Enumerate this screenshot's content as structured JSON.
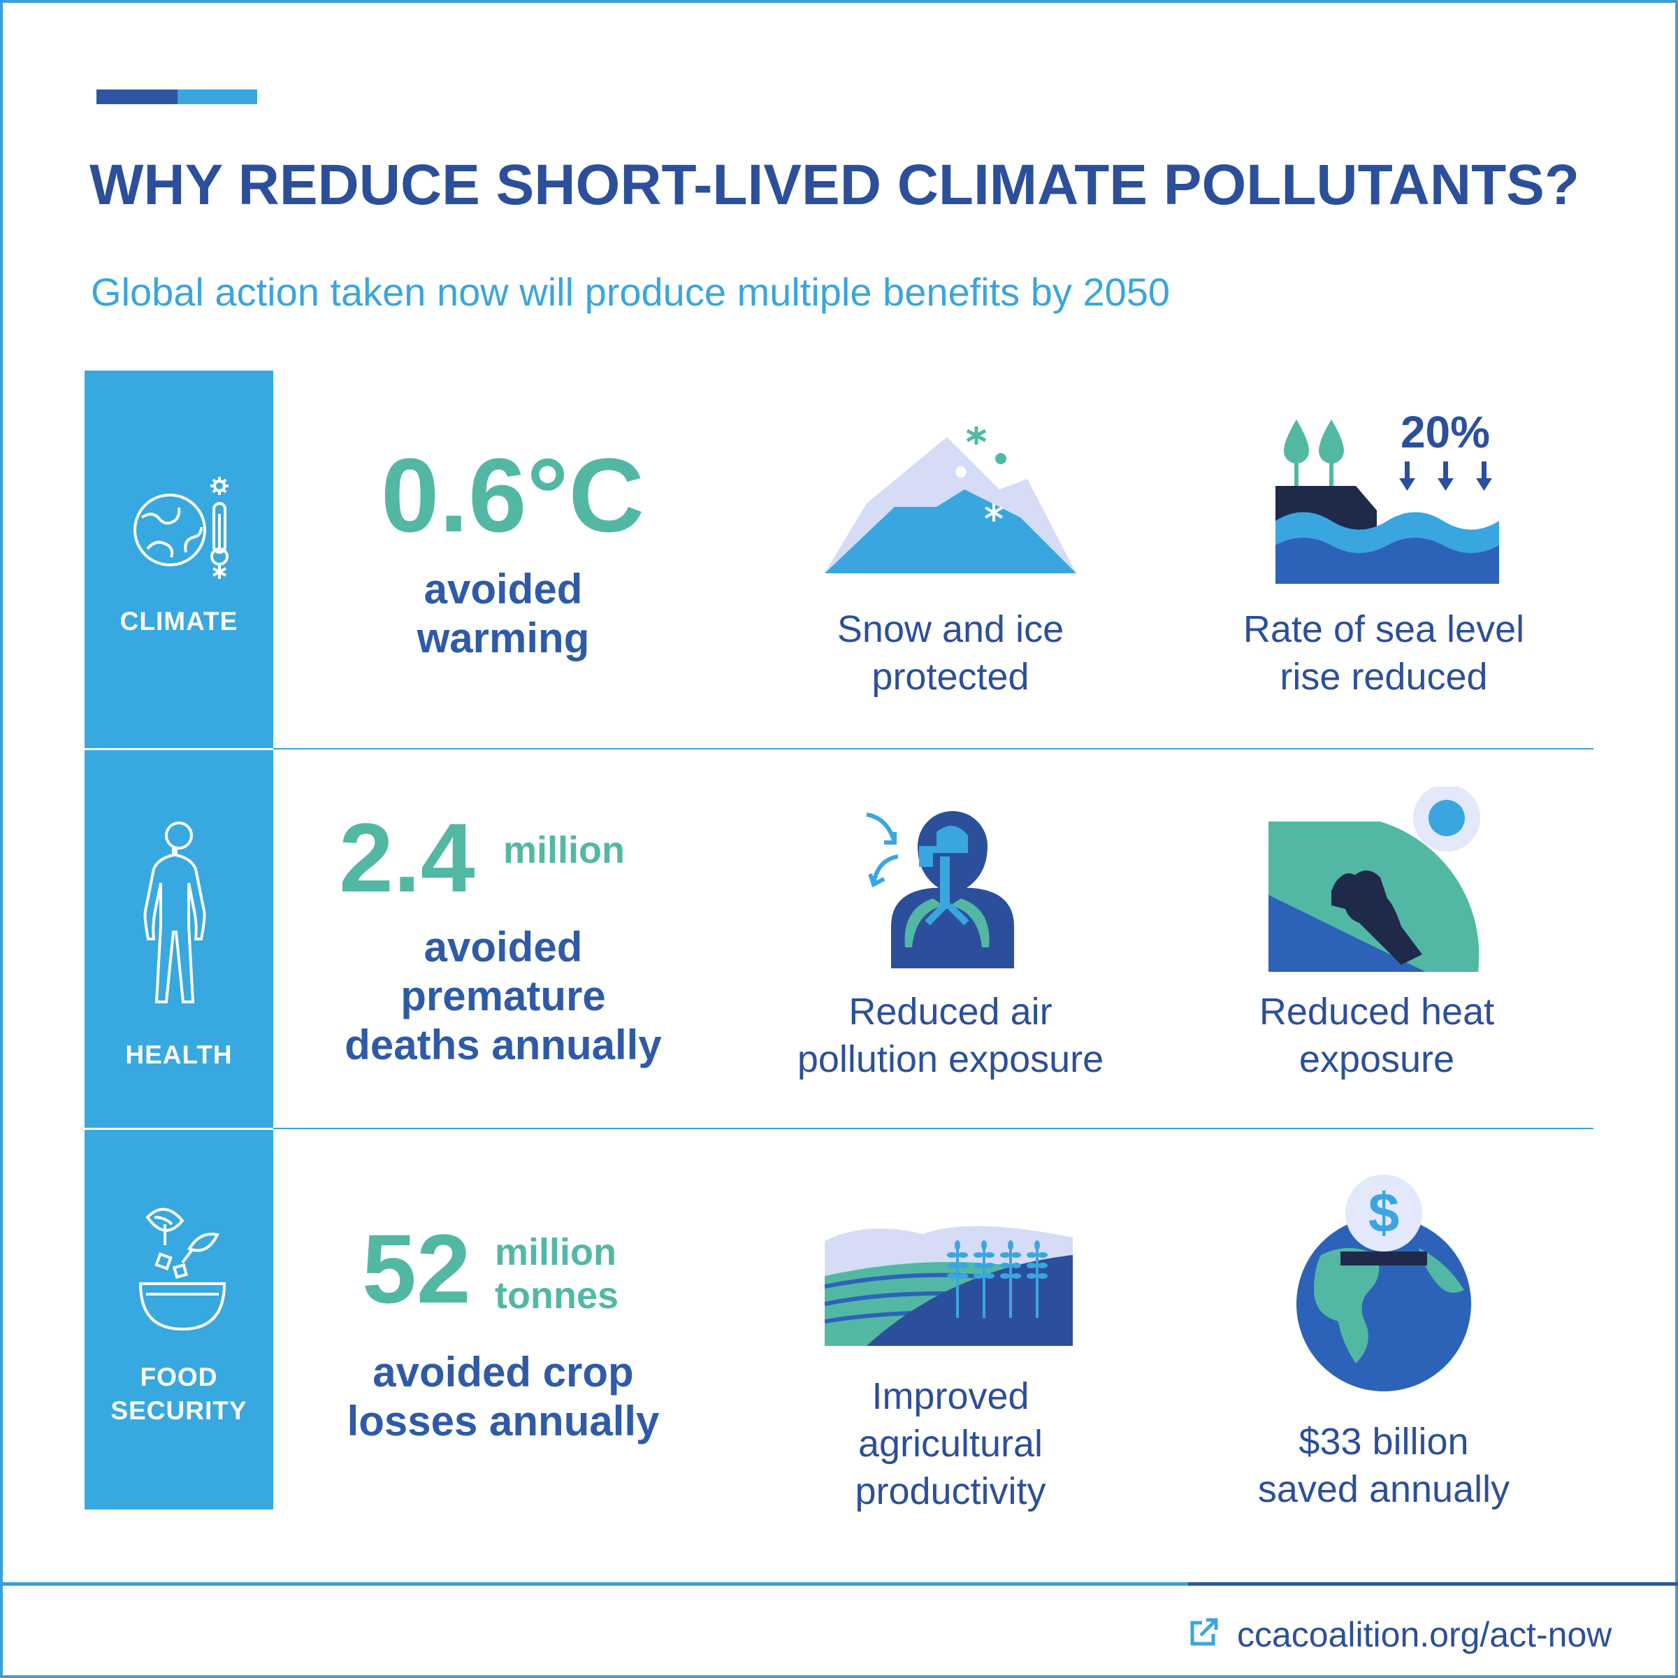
{
  "header": {
    "title": "WHY REDUCE SHORT-LIVED CLIMATE POLLUTANTS?",
    "subtitle": "Global action taken now will produce multiple benefits by 2050"
  },
  "rows": [
    {
      "category": "CLIMATE",
      "category_icon": "globe-thermometer-icon",
      "stat_value": "0.6°C",
      "stat_unit": "",
      "stat_desc_lines": [
        "avoided",
        "warming"
      ],
      "benefits": [
        {
          "icon": "mountain-snow-icon",
          "lines": [
            "Snow and ice",
            "protected"
          ]
        },
        {
          "icon": "sea-level-icon",
          "figure": "20%",
          "lines": [
            "Rate of sea level",
            "rise reduced"
          ]
        }
      ]
    },
    {
      "category": "HEALTH",
      "category_icon": "human-body-icon",
      "stat_value": "2.4",
      "stat_unit": "million",
      "stat_desc_lines": [
        "avoided",
        "premature",
        "deaths annually"
      ],
      "benefits": [
        {
          "icon": "lungs-breathing-icon",
          "lines": [
            "Reduced air",
            "pollution exposure"
          ]
        },
        {
          "icon": "worker-sun-icon",
          "lines": [
            "Reduced heat",
            "exposure"
          ]
        }
      ]
    },
    {
      "category_lines": [
        "FOOD",
        "SECURITY"
      ],
      "category_icon": "food-bowl-icon",
      "stat_value": "52",
      "stat_unit_lines": [
        "million",
        "tonnes"
      ],
      "stat_desc_lines": [
        "avoided crop",
        "losses annually"
      ],
      "benefits": [
        {
          "icon": "wheat-field-icon",
          "lines": [
            "Improved",
            "agricultural",
            "productivity"
          ]
        },
        {
          "icon": "globe-dollar-icon",
          "figure": "$",
          "lines": [
            "$33 billion",
            "saved annually"
          ]
        }
      ]
    }
  ],
  "footer": {
    "link_icon": "external-link-icon",
    "link_text": "ccacoalition.org/act-now"
  },
  "colors": {
    "navy": "#2c4f9b",
    "sky": "#38a8e0",
    "teal": "#52b8a4",
    "dark": "#1f2a4a"
  }
}
